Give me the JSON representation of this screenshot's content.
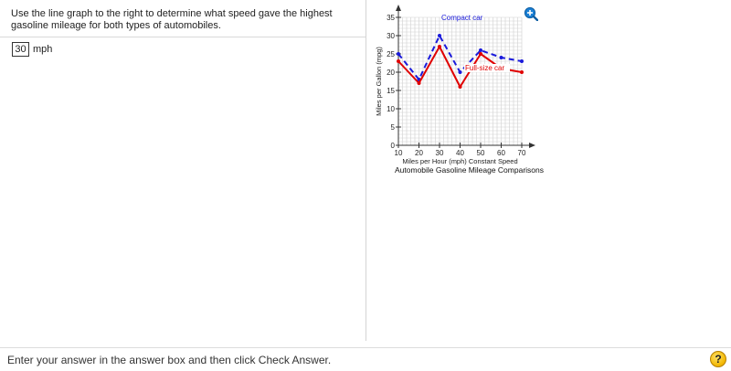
{
  "question": {
    "text": "Use the line graph to the right to determine what speed gave the highest gasoline mileage for both types of automobiles."
  },
  "answer": {
    "value": "30",
    "unit": "mph"
  },
  "footer": {
    "instruction": "Enter your answer in the answer box and then click Check Answer.",
    "help_label": "?"
  },
  "icons": {
    "zoom": "zoom-in-icon",
    "help": "help-icon"
  },
  "colors": {
    "compact": "#1a1adb",
    "fullsize": "#e00000",
    "zoom": "#1a7fd4",
    "help": "#f2b600"
  },
  "chart_data": {
    "type": "line",
    "title": "Automobile Gasoline Mileage Comparisons",
    "xlabel": "Miles per Hour (mph) Constant Speed",
    "ylabel": "Miles per Gallon (mpg)",
    "x": [
      10,
      20,
      30,
      40,
      50,
      60,
      70
    ],
    "xticks": [
      "10",
      "20",
      "30",
      "40",
      "50",
      "60",
      "70"
    ],
    "yticks": [
      "0",
      "5",
      "10",
      "15",
      "20",
      "25",
      "30",
      "35"
    ],
    "xlim": [
      10,
      70
    ],
    "ylim": [
      0,
      35
    ],
    "grid": true,
    "series": [
      {
        "name": "Compact car",
        "values": [
          25,
          18,
          30,
          20,
          26,
          24,
          23
        ],
        "style": "dashed",
        "color": "#1a1adb"
      },
      {
        "name": "Full-size car",
        "values": [
          23,
          17,
          27,
          16,
          25,
          21,
          20
        ],
        "style": "solid",
        "color": "#e00000"
      }
    ]
  }
}
